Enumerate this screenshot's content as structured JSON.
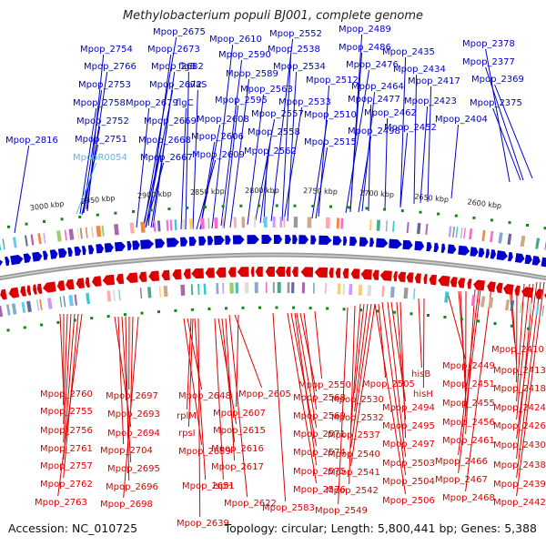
{
  "title": "Methylobacterium populi BJ001, complete genome",
  "accession_text": "Accession: NC_010725",
  "topology_text": "Topology: circular; Length: 5,800,441 bp; Genes: 5,388",
  "kbp_labels": [
    "3000 kbp",
    "2950 kbp",
    "2900 kbp",
    "2850 kbp",
    "2800 kbp",
    "2750 kbp",
    "2700 kbp",
    "2650 kbp",
    "2600 kbp"
  ],
  "colors": {
    "forward": "#0000cc",
    "reverse": "#dd0000",
    "rna": "#55bbee",
    "backbone": "#888888",
    "scale": "#118811"
  },
  "top_labels": [
    {
      "text": "Mpop_2675",
      "rna": false
    },
    {
      "text": "Mpop_2610",
      "rna": false
    },
    {
      "text": "Mpop_2552",
      "rna": false
    },
    {
      "text": "Mpop_2489",
      "rna": false
    },
    {
      "text": "Mpop_2754",
      "rna": false
    },
    {
      "text": "Mpop_2673",
      "rna": false
    },
    {
      "text": "Mpop_2590",
      "rna": false
    },
    {
      "text": "Mpop_2538",
      "rna": false
    },
    {
      "text": "Mpop_2486",
      "rna": false
    },
    {
      "text": "Mpop_2435",
      "rna": false
    },
    {
      "text": "Mpop_2378",
      "rna": false
    },
    {
      "text": "Mpop_2766",
      "rna": false
    },
    {
      "text": "Mpop_2682",
      "rna": false
    },
    {
      "text": "flgB",
      "rna": false
    },
    {
      "text": "Mpop_2534",
      "rna": false
    },
    {
      "text": "Mpop_2476",
      "rna": false
    },
    {
      "text": "Mpop_2434",
      "rna": false
    },
    {
      "text": "Mpop_2377",
      "rna": false
    },
    {
      "text": "Mpop_2589",
      "rna": false
    },
    {
      "text": "Mpop_2512",
      "rna": false
    },
    {
      "text": "Mpop_2753",
      "rna": false
    },
    {
      "text": "Mpop_2672",
      "rna": false
    },
    {
      "text": "alaS",
      "rna": false
    },
    {
      "text": "Mpop_2563",
      "rna": false
    },
    {
      "text": "Mpop_2464",
      "rna": false
    },
    {
      "text": "Mpop_2417",
      "rna": false
    },
    {
      "text": "Mpop_2369",
      "rna": false
    },
    {
      "text": "Mpop_2595",
      "rna": false
    },
    {
      "text": "Mpop_2477",
      "rna": false
    },
    {
      "text": "Mpop_2758",
      "rna": false
    },
    {
      "text": "Mpop_2679",
      "rna": false
    },
    {
      "text": "flgC",
      "rna": false
    },
    {
      "text": "Mpop_2533",
      "rna": false
    },
    {
      "text": "Mpop_2423",
      "rna": false
    },
    {
      "text": "Mpop_2375",
      "rna": false
    },
    {
      "text": "Mpop_2557",
      "rna": false
    },
    {
      "text": "Mpop_2510",
      "rna": false
    },
    {
      "text": "Mpop_2462",
      "rna": false
    },
    {
      "text": "Mpop_2752",
      "rna": false
    },
    {
      "text": "Mpop_2669",
      "rna": false
    },
    {
      "text": "Mpop_2608",
      "rna": false
    },
    {
      "text": "Mpop_2404",
      "rna": false
    },
    {
      "text": "Mpop_2498",
      "rna": false
    },
    {
      "text": "Mpop_2558",
      "rna": false
    },
    {
      "text": "Mpop_2452",
      "rna": false
    },
    {
      "text": "Mpop_2751",
      "rna": false
    },
    {
      "text": "Mpop_2668",
      "rna": false
    },
    {
      "text": "Mpop_2606",
      "rna": false
    },
    {
      "text": "Mpop_2515",
      "rna": false
    },
    {
      "text": "Mpop_2816",
      "rna": false
    },
    {
      "text": "Mpop_2562",
      "rna": false
    },
    {
      "text": "MpopR0054",
      "rna": true
    },
    {
      "text": "Mpop_2667",
      "rna": false
    },
    {
      "text": "Mpop_2609",
      "rna": false
    }
  ],
  "bottom_labels": [
    {
      "text": "Mpop_2410"
    },
    {
      "text": "Mpop_2449"
    },
    {
      "text": "Mpop_2413"
    },
    {
      "text": "hisB"
    },
    {
      "text": "Mpop_2451"
    },
    {
      "text": "Mpop_2418"
    },
    {
      "text": "Mpop_2505"
    },
    {
      "text": "Mpop_2550"
    },
    {
      "text": "Mpop_2605"
    },
    {
      "text": "Mpop_2760"
    },
    {
      "text": "Mpop_2697"
    },
    {
      "text": "Mpop_2648"
    },
    {
      "text": "Mpop_2568"
    },
    {
      "text": "Mpop_2530"
    },
    {
      "text": "hisH"
    },
    {
      "text": "Mpop_2455"
    },
    {
      "text": "Mpop_2424"
    },
    {
      "text": "Mpop_2607"
    },
    {
      "text": "Mpop_2494"
    },
    {
      "text": "Mpop_2755"
    },
    {
      "text": "Mpop_2693"
    },
    {
      "text": "rplM"
    },
    {
      "text": "Mpop_2569"
    },
    {
      "text": "Mpop_2532"
    },
    {
      "text": "Mpop_2456"
    },
    {
      "text": "Mpop_2426"
    },
    {
      "text": "Mpop_2615"
    },
    {
      "text": "Mpop_2495"
    },
    {
      "text": "Mpop_2756"
    },
    {
      "text": "Mpop_2694"
    },
    {
      "text": "rpsI"
    },
    {
      "text": "Mpop_2571"
    },
    {
      "text": "Mpop_2537"
    },
    {
      "text": "Mpop_2461"
    },
    {
      "text": "Mpop_2430"
    },
    {
      "text": "Mpop_2616"
    },
    {
      "text": "Mpop_2497"
    },
    {
      "text": "Mpop_2761"
    },
    {
      "text": "Mpop_2704"
    },
    {
      "text": "Mpop_2659"
    },
    {
      "text": "Mpop_2574"
    },
    {
      "text": "Mpop_2540"
    },
    {
      "text": "Mpop_2466"
    },
    {
      "text": "Mpop_2617"
    },
    {
      "text": "Mpop_2503"
    },
    {
      "text": "Mpop_2438"
    },
    {
      "text": "Mpop_2757"
    },
    {
      "text": "Mpop_2695"
    },
    {
      "text": "Mpop_2575"
    },
    {
      "text": "Mpop_2541"
    },
    {
      "text": "Mpop_2467"
    },
    {
      "text": "ispH"
    },
    {
      "text": "Mpop_2504"
    },
    {
      "text": "Mpop_2439"
    },
    {
      "text": "Mpop_2762"
    },
    {
      "text": "Mpop_2696"
    },
    {
      "text": "Mpop_2651"
    },
    {
      "text": "Mpop_2576"
    },
    {
      "text": "Mpop_2542"
    },
    {
      "text": "Mpop_2468"
    },
    {
      "text": "Mpop_2506"
    },
    {
      "text": "Mpop_2442"
    },
    {
      "text": "Mpop_2763"
    },
    {
      "text": "Mpop_2698"
    },
    {
      "text": "Mpop_2622"
    },
    {
      "text": "Mpop_2583"
    },
    {
      "text": "Mpop_2549"
    },
    {
      "text": "Mpop_2639"
    }
  ]
}
